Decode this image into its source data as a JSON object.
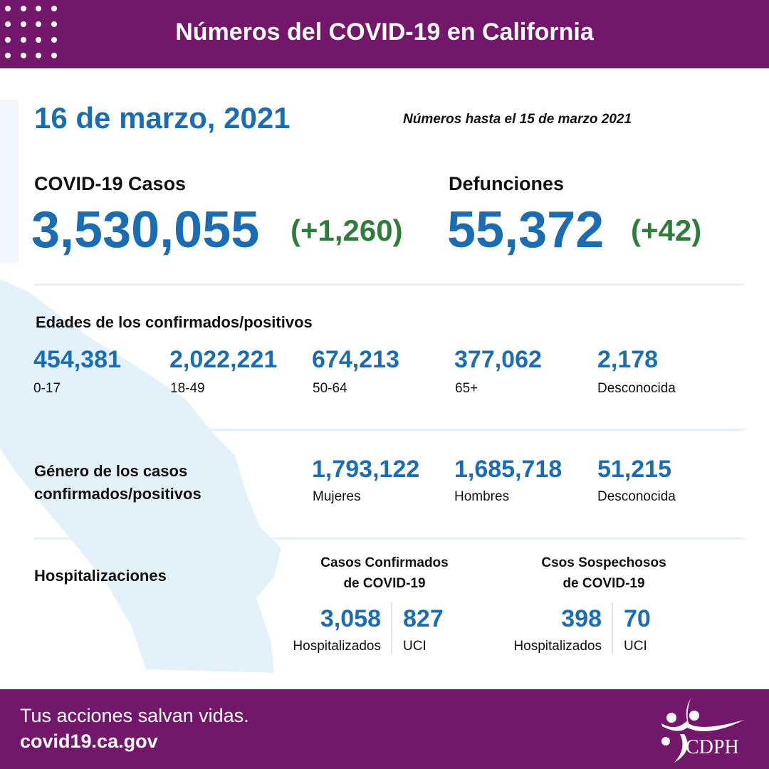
{
  "header": {
    "title": "Números del COVID-19 en California"
  },
  "date": "16 de marzo, 2021",
  "as_of": "Números hasta el 15 de marzo 2021",
  "cases": {
    "label": "COVID-19 Casos",
    "value": "3,530,055",
    "change": "(+1,260)"
  },
  "deaths": {
    "label": "Defunciones",
    "value": "55,372",
    "change": "(+42)"
  },
  "ages": {
    "title": "Edades de los confirmados/positivos",
    "items": [
      {
        "value": "454,381",
        "label": "0-17"
      },
      {
        "value": "2,022,221",
        "label": "18-49"
      },
      {
        "value": "674,213",
        "label": "50-64"
      },
      {
        "value": "377,062",
        "label": "65+"
      },
      {
        "value": "2,178",
        "label": "Desconocida"
      }
    ]
  },
  "gender": {
    "title_line1": "Género de los casos",
    "title_line2": "confirmados/positivos",
    "items": [
      {
        "value": "1,793,122",
        "label": "Mujeres"
      },
      {
        "value": "1,685,718",
        "label": "Hombres"
      },
      {
        "value": "51,215",
        "label": "Desconocida"
      }
    ]
  },
  "hosp": {
    "title": "Hospitalizaciones",
    "confirmed": {
      "title_line1": "Casos Confirmados",
      "title_line2": "de COVID-19",
      "hosp_value": "3,058",
      "hosp_label": "Hospitalizados",
      "icu_value": "827",
      "icu_label": "UCI"
    },
    "suspected": {
      "title_line1": "Csos Sospechosos",
      "title_line2": "de COVID-19",
      "hosp_value": "398",
      "hosp_label": "Hospitalizados",
      "icu_value": "70",
      "icu_label": "UCI"
    }
  },
  "footer": {
    "tagline": "Tus acciones salvan vidas.",
    "url": "covid19.ca.gov",
    "logo_text": "CDPH"
  },
  "colors": {
    "purple": "#721769",
    "blue": "#1b6db3",
    "green": "#2f7d3c",
    "map": "#e3f1fb"
  }
}
